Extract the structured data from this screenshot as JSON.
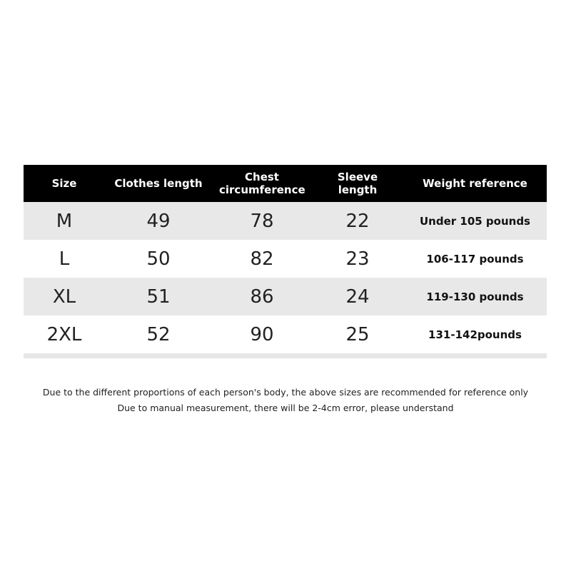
{
  "table": {
    "header": [
      "Size",
      "Clothes length",
      "Chest circumference",
      "Sleeve length",
      "Weight reference"
    ],
    "rows": [
      [
        "M",
        49,
        78,
        22,
        "Under 105 pounds"
      ],
      [
        "L",
        50,
        82,
        23,
        "106-117 pounds"
      ],
      [
        "XL",
        51,
        86,
        24,
        "119-130 pounds"
      ],
      [
        "2XL",
        52,
        90,
        25,
        "131-142pounds"
      ]
    ]
  },
  "notes": [
    "Due to the different proportions of each person's body, the above sizes are recommended for reference only",
    "Due to manual measurement, there will be 2-4cm error, please understand"
  ]
}
